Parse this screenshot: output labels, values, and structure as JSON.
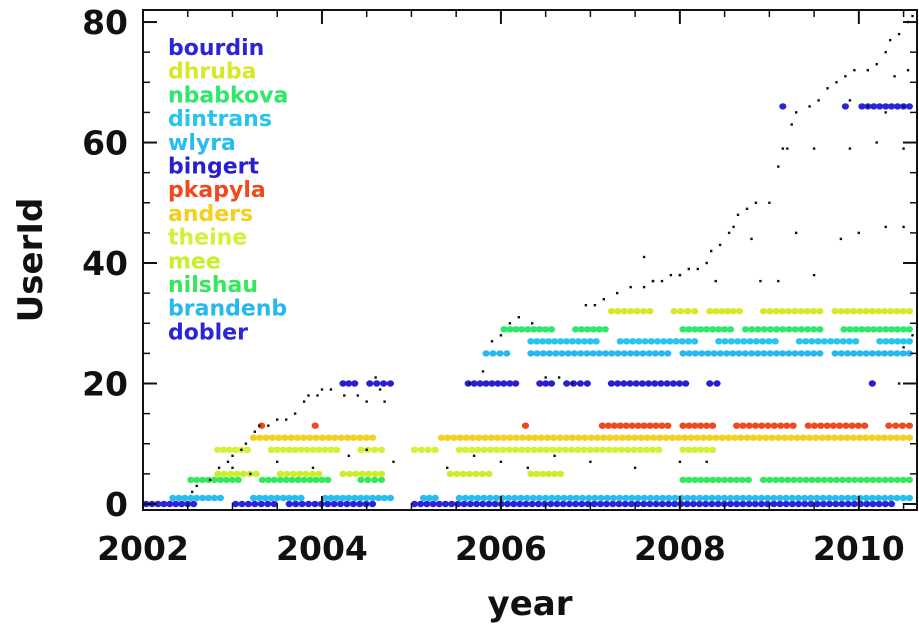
{
  "chart_data": {
    "type": "scatter",
    "title": "",
    "xlabel": "year",
    "ylabel": "UserId",
    "xlim": [
      2002.0,
      2010.65
    ],
    "ylim": [
      -1,
      82
    ],
    "x_ticks": [
      "2002",
      "2004",
      "2006",
      "2008",
      "2010"
    ],
    "y_ticks": [
      "0",
      "20",
      "40",
      "60",
      "80"
    ],
    "x_tick_values": [
      2002,
      2004,
      2006,
      2008,
      2010
    ],
    "y_tick_values": [
      0,
      20,
      40,
      60,
      80
    ],
    "grid": false,
    "legend_position": "top-left",
    "legend": [
      {
        "name": "bourdin",
        "color": "#2b24d8"
      },
      {
        "name": "dhruba",
        "color": "#d8e829"
      },
      {
        "name": "nbabkova",
        "color": "#2ee86b"
      },
      {
        "name": "dintrans",
        "color": "#27c4ee"
      },
      {
        "name": "wlyra",
        "color": "#27bdf0"
      },
      {
        "name": "bingert",
        "color": "#2a1fd0"
      },
      {
        "name": "pkapyla",
        "color": "#f0491f"
      },
      {
        "name": "anders",
        "color": "#f5cf1e"
      },
      {
        "name": "theine",
        "color": "#d7ef36"
      },
      {
        "name": "mee",
        "color": "#c9ef2a"
      },
      {
        "name": "nilshau",
        "color": "#34e85c"
      },
      {
        "name": "brandenb",
        "color": "#27b8ef"
      },
      {
        "name": "dobler",
        "color": "#2b24d8"
      }
    ],
    "series": [
      {
        "color": "#2b24d8",
        "user_id": 0,
        "segments": [
          [
            2002.0,
            2002.6
          ],
          [
            2003.0,
            2003.5
          ],
          [
            2003.6,
            2004.6
          ],
          [
            2005.0,
            2010.4
          ]
        ]
      },
      {
        "color": "#27bdf0",
        "user_id": 1,
        "segments": [
          [
            2002.3,
            2002.9
          ],
          [
            2003.2,
            2003.8
          ],
          [
            2004.0,
            2004.8
          ],
          [
            2005.1,
            2005.3
          ],
          [
            2005.5,
            2010.6
          ]
        ]
      },
      {
        "color": "#34e85c",
        "user_id": 4,
        "segments": [
          [
            2002.5,
            2003.1
          ],
          [
            2003.3,
            2004.1
          ],
          [
            2004.4,
            2004.7
          ],
          [
            2008.0,
            2008.8
          ],
          [
            2008.9,
            2010.6
          ]
        ]
      },
      {
        "color": "#c9ef2a",
        "user_id": 5,
        "segments": [
          [
            2002.8,
            2003.3
          ],
          [
            2003.5,
            2004.0
          ],
          [
            2004.2,
            2004.7
          ],
          [
            2005.4,
            2005.9
          ],
          [
            2006.3,
            2006.7
          ]
        ]
      },
      {
        "color": "#d7ef36",
        "user_id": 9,
        "segments": [
          [
            2002.8,
            2003.2
          ],
          [
            2003.4,
            2004.2
          ],
          [
            2004.4,
            2004.7
          ],
          [
            2005.0,
            2005.3
          ],
          [
            2005.5,
            2007.8
          ],
          [
            2008.0,
            2008.4
          ]
        ]
      },
      {
        "color": "#f5cf1e",
        "user_id": 11,
        "segments": [
          [
            2003.2,
            2004.6
          ],
          [
            2005.3,
            2010.6
          ]
        ]
      },
      {
        "color": "#f0491f",
        "user_id": 13,
        "segments": [
          [
            2003.3,
            2003.35
          ],
          [
            2003.9,
            2003.95
          ],
          [
            2006.25,
            2006.3
          ],
          [
            2007.1,
            2007.9
          ],
          [
            2008.0,
            2008.4
          ],
          [
            2008.6,
            2009.3
          ],
          [
            2009.4,
            2010.1
          ],
          [
            2010.3,
            2010.6
          ]
        ]
      },
      {
        "color": "#2a1fd0",
        "user_id": 20,
        "segments": [
          [
            2004.2,
            2004.4
          ],
          [
            2004.5,
            2004.8
          ],
          [
            2005.6,
            2006.2
          ],
          [
            2006.4,
            2006.6
          ],
          [
            2006.7,
            2007.0
          ],
          [
            2007.2,
            2008.1
          ],
          [
            2008.3,
            2008.45
          ],
          [
            2010.1,
            2010.2
          ]
        ]
      },
      {
        "color": "#27b8ef",
        "user_id": 25,
        "segments": [
          [
            2005.8,
            2006.1
          ],
          [
            2006.3,
            2007.9
          ],
          [
            2008.0,
            2009.6
          ],
          [
            2009.7,
            2010.6
          ]
        ]
      },
      {
        "color": "#27c4ee",
        "user_id": 27,
        "segments": [
          [
            2006.3,
            2007.1
          ],
          [
            2007.3,
            2008.2
          ],
          [
            2008.4,
            2009.1
          ],
          [
            2009.3,
            2010.0
          ],
          [
            2010.2,
            2010.6
          ]
        ]
      },
      {
        "color": "#2ee86b",
        "user_id": 29,
        "segments": [
          [
            2006.0,
            2006.6
          ],
          [
            2006.8,
            2007.2
          ],
          [
            2008.0,
            2008.6
          ],
          [
            2008.7,
            2009.6
          ],
          [
            2009.8,
            2010.6
          ]
        ]
      },
      {
        "color": "#d8e829",
        "user_id": 32,
        "segments": [
          [
            2007.2,
            2007.7
          ],
          [
            2007.9,
            2008.2
          ],
          [
            2008.3,
            2008.7
          ],
          [
            2008.9,
            2009.6
          ],
          [
            2009.7,
            2010.6
          ]
        ]
      },
      {
        "color": "#2b24d8",
        "user_id": 66,
        "segments": [
          [
            2009.1,
            2009.2
          ],
          [
            2009.8,
            2009.9
          ],
          [
            2010.0,
            2010.6
          ]
        ]
      }
    ],
    "scattered_points": [
      {
        "color": "#111111",
        "points": [
          [
            2002.55,
            2
          ],
          [
            2002.6,
            3
          ],
          [
            2002.75,
            4
          ],
          [
            2002.85,
            6
          ],
          [
            2002.95,
            7
          ],
          [
            2003.0,
            8
          ],
          [
            2003.1,
            9
          ],
          [
            2003.15,
            10
          ],
          [
            2003.25,
            12
          ],
          [
            2003.3,
            13
          ],
          [
            2003.4,
            13
          ],
          [
            2003.5,
            14
          ],
          [
            2003.6,
            14
          ],
          [
            2003.7,
            15
          ],
          [
            2003.8,
            17
          ],
          [
            2003.85,
            18
          ],
          [
            2003.95,
            18
          ],
          [
            2004.0,
            19
          ],
          [
            2004.1,
            19
          ],
          [
            2004.25,
            18
          ],
          [
            2004.4,
            18
          ],
          [
            2004.5,
            17
          ],
          [
            2004.6,
            21
          ],
          [
            2004.65,
            19
          ],
          [
            2004.7,
            17
          ],
          [
            2003.0,
            6
          ],
          [
            2003.2,
            5
          ],
          [
            2003.5,
            7
          ],
          [
            2003.9,
            6
          ],
          [
            2004.3,
            8
          ],
          [
            2004.5,
            9
          ],
          [
            2004.8,
            7
          ],
          [
            2005.65,
            20
          ],
          [
            2005.8,
            22
          ],
          [
            2005.9,
            27
          ],
          [
            2006.0,
            28
          ],
          [
            2006.1,
            30
          ],
          [
            2006.2,
            31
          ],
          [
            2006.35,
            30
          ],
          [
            2006.5,
            21
          ],
          [
            2006.65,
            21
          ],
          [
            2006.8,
            20
          ],
          [
            2006.95,
            33
          ],
          [
            2007.05,
            33
          ],
          [
            2007.15,
            34
          ],
          [
            2007.3,
            35
          ],
          [
            2007.45,
            36
          ],
          [
            2007.6,
            36
          ],
          [
            2007.7,
            37
          ],
          [
            2007.8,
            37
          ],
          [
            2007.9,
            38
          ],
          [
            2008.0,
            38
          ],
          [
            2008.1,
            39
          ],
          [
            2008.2,
            39
          ],
          [
            2008.3,
            40
          ],
          [
            2008.35,
            42
          ],
          [
            2008.45,
            43
          ],
          [
            2008.55,
            45
          ],
          [
            2008.6,
            46
          ],
          [
            2008.65,
            48
          ],
          [
            2008.75,
            49
          ],
          [
            2008.85,
            50
          ],
          [
            2009.0,
            50
          ],
          [
            2009.1,
            56
          ],
          [
            2009.15,
            59
          ],
          [
            2009.25,
            63
          ],
          [
            2009.3,
            65
          ],
          [
            2009.45,
            66
          ],
          [
            2009.55,
            67
          ],
          [
            2009.65,
            69
          ],
          [
            2009.75,
            70
          ],
          [
            2009.85,
            71
          ],
          [
            2009.95,
            72
          ],
          [
            2010.1,
            72
          ],
          [
            2010.2,
            73
          ],
          [
            2010.3,
            75
          ],
          [
            2010.35,
            77
          ],
          [
            2010.45,
            78
          ],
          [
            2010.55,
            80
          ],
          [
            2010.6,
            81
          ],
          [
            2007.6,
            41
          ],
          [
            2007.7,
            37
          ],
          [
            2008.0,
            38
          ],
          [
            2008.4,
            37
          ],
          [
            2008.9,
            37
          ],
          [
            2009.1,
            37
          ],
          [
            2009.3,
            45
          ],
          [
            2009.5,
            38
          ],
          [
            2009.8,
            44
          ],
          [
            2010.0,
            45
          ],
          [
            2010.3,
            46
          ],
          [
            2010.5,
            46
          ],
          [
            2008.8,
            44
          ],
          [
            2009.2,
            59
          ],
          [
            2009.5,
            59
          ],
          [
            2009.9,
            59
          ],
          [
            2010.2,
            60
          ],
          [
            2010.5,
            59
          ],
          [
            2009.9,
            67
          ],
          [
            2010.1,
            66
          ],
          [
            2010.3,
            65
          ],
          [
            2010.5,
            66
          ],
          [
            2010.4,
            71
          ],
          [
            2010.55,
            72
          ],
          [
            2005.4,
            6
          ],
          [
            2005.7,
            8
          ],
          [
            2006.0,
            7
          ],
          [
            2006.3,
            6
          ],
          [
            2006.6,
            8
          ],
          [
            2007.0,
            7
          ],
          [
            2007.5,
            6
          ],
          [
            2008.0,
            7
          ],
          [
            2008.3,
            7
          ],
          [
            2010.45,
            20
          ],
          [
            2010.5,
            26
          ],
          [
            2010.6,
            28
          ]
        ]
      }
    ]
  }
}
